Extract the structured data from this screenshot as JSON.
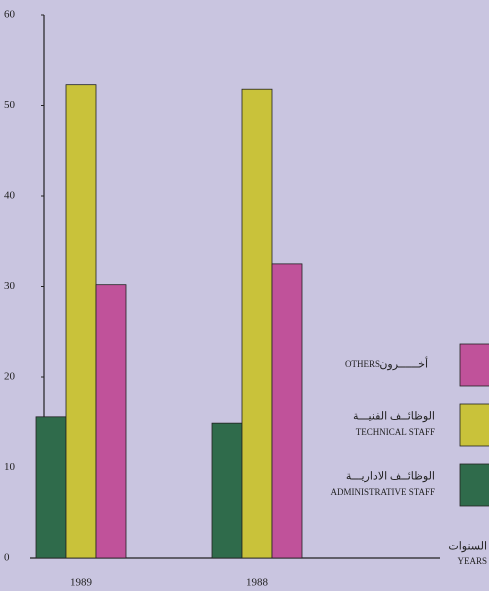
{
  "chart_data": {
    "type": "bar",
    "categories": [
      "1989",
      "1988"
    ],
    "series": [
      {
        "name": "ADMINISTRATIVE STAFF",
        "name_ar": "الوظائــف الاداريـــة",
        "color": "#2f6b4b",
        "values": [
          15.6,
          14.9
        ]
      },
      {
        "name": "TECHNICAL STAFF",
        "name_ar": "الوظائــف الفنيـــة",
        "color": "#c9c23a",
        "values": [
          52.3,
          51.8
        ]
      },
      {
        "name": "OTHERS",
        "name_ar": "أخــــــرون",
        "color": "#c0529a",
        "values": [
          30.2,
          32.5
        ]
      }
    ],
    "x_label": "YEARS",
    "x_label_ar": "السنوات",
    "ylim": [
      0,
      60
    ],
    "yticks": [
      0,
      10,
      20,
      30,
      40,
      50,
      60
    ],
    "grid": false
  }
}
